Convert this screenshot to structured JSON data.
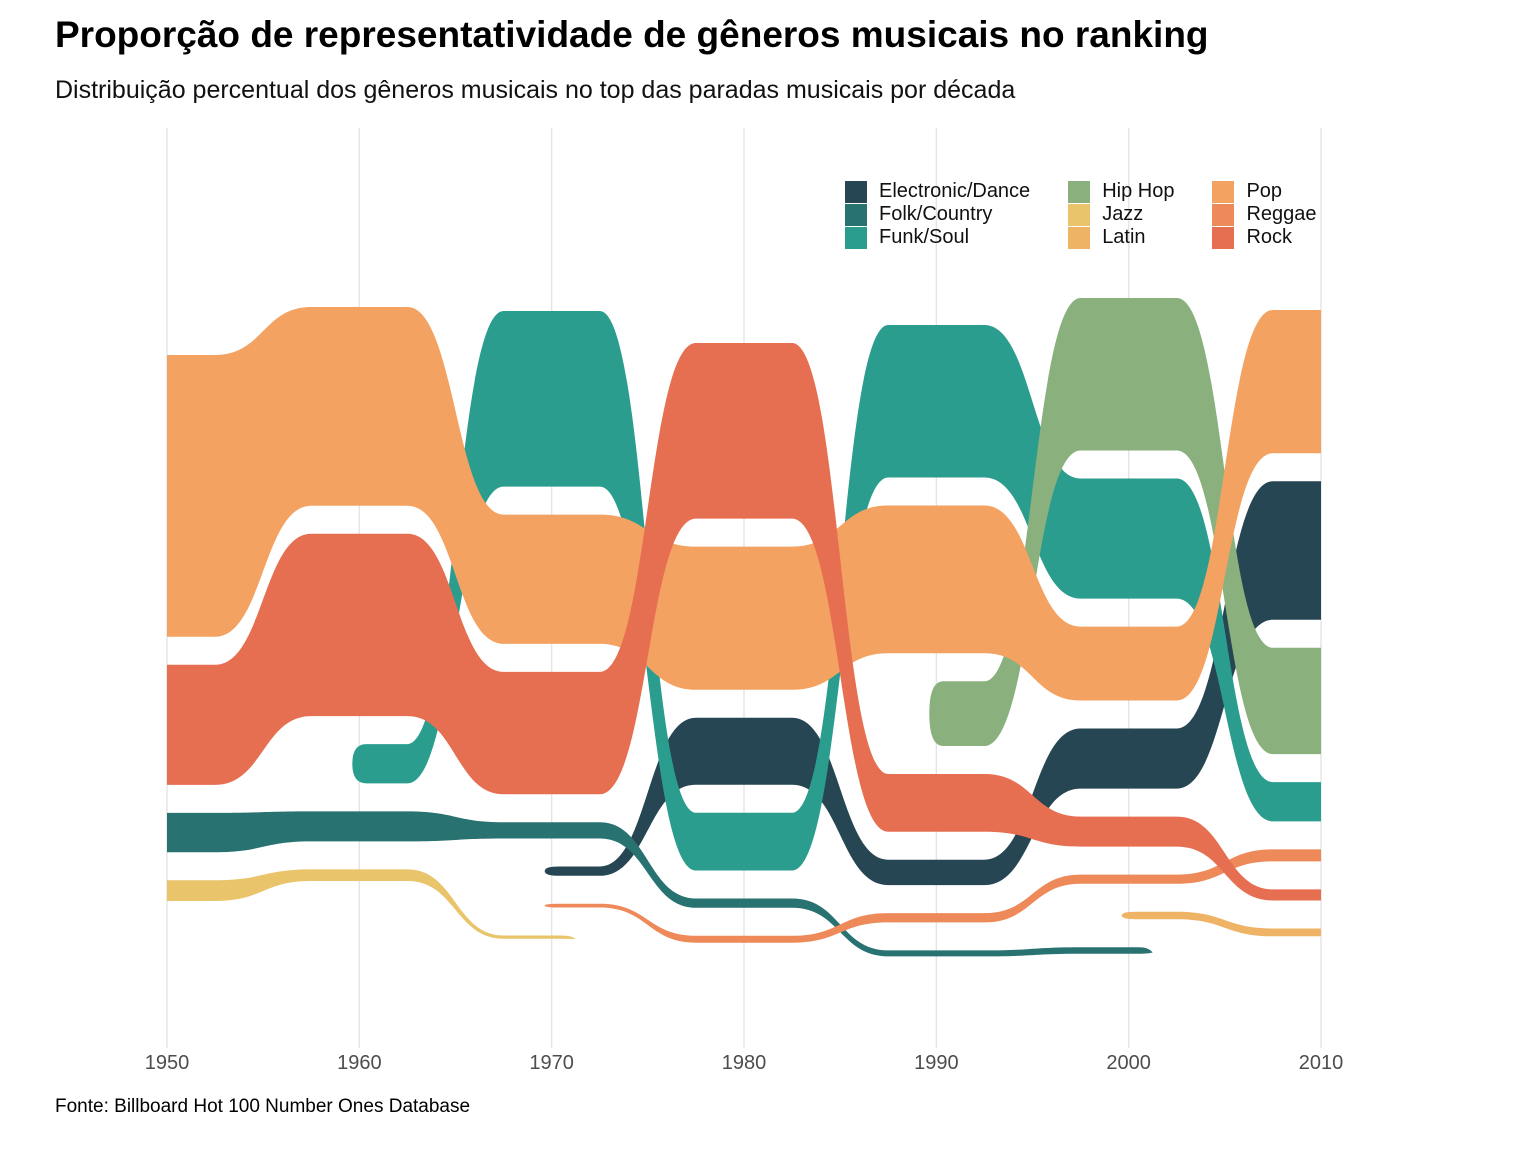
{
  "title": "Proporção de representatividade de gêneros musicais no ranking",
  "subtitle": "Distribuição percentual dos gêneros musicais no top das paradas musicais por década",
  "caption": "Fonte: Billboard Hot 100 Number Ones Database",
  "colors": {
    "grid": "#e4e4e4",
    "axis_text": "#4d4d4d",
    "background": "#ffffff"
  },
  "legend": {
    "position": "top-right",
    "items": [
      {
        "label": "Electronic/Dance",
        "color": "#264653"
      },
      {
        "label": "Folk/Country",
        "color": "#287271"
      },
      {
        "label": "Funk/Soul",
        "color": "#2a9d8f"
      },
      {
        "label": "Hip Hop",
        "color": "#8ab17d"
      },
      {
        "label": "Jazz",
        "color": "#e9c46a"
      },
      {
        "label": "Latin",
        "color": "#efb366"
      },
      {
        "label": "Pop",
        "color": "#f4a261"
      },
      {
        "label": "Reggae",
        "color": "#ee8959"
      },
      {
        "label": "Rock",
        "color": "#e76f51"
      }
    ]
  },
  "chart_data": {
    "type": "area",
    "variant": "bump-stream (ranked percentage streams per decade, white gaps between bands)",
    "title": "Proporção de representatividade de gêneros musicais no ranking",
    "xlabel": "",
    "ylabel": "",
    "grid": "vertical-only",
    "x": [
      1950,
      1960,
      1970,
      1980,
      1990,
      2000,
      2010
    ],
    "x_tick_labels": [
      "1950",
      "1960",
      "1970",
      "1980",
      "1990",
      "2000",
      "2010"
    ],
    "unit": "percent of chart-topping songs",
    "series": [
      {
        "name": "Electronic/Dance",
        "color": "#264653",
        "values": [
          null,
          null,
          2,
          14.5,
          5.5,
          13,
          30
        ]
      },
      {
        "name": "Folk/Country",
        "color": "#287271",
        "values": [
          8.5,
          6.5,
          3.5,
          2,
          1.3,
          1.4,
          null
        ]
      },
      {
        "name": "Funk/Soul",
        "color": "#2a9d8f",
        "values": [
          null,
          8.5,
          38,
          12.5,
          33,
          26,
          8.5
        ]
      },
      {
        "name": "Hip Hop",
        "color": "#8ab17d",
        "values": [
          null,
          null,
          null,
          null,
          14,
          33,
          23
        ]
      },
      {
        "name": "Jazz",
        "color": "#e9c46a",
        "values": [
          4.5,
          2.5,
          0.7,
          null,
          null,
          null,
          null
        ]
      },
      {
        "name": "Latin",
        "color": "#efb366",
        "values": [
          null,
          null,
          null,
          null,
          null,
          1.6,
          1.7
        ]
      },
      {
        "name": "Pop",
        "color": "#f4a261",
        "values": [
          61,
          43,
          28,
          31,
          32,
          16,
          31
        ]
      },
      {
        "name": "Reggae",
        "color": "#ee8959",
        "values": [
          null,
          null,
          0.8,
          1.5,
          2,
          2,
          2.6
        ]
      },
      {
        "name": "Rock",
        "color": "#e76f51",
        "values": [
          26,
          39.5,
          26.5,
          38,
          12.5,
          6.5,
          2.4
        ]
      }
    ]
  }
}
